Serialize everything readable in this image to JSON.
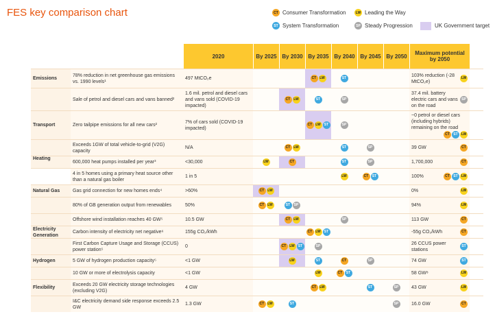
{
  "title": "FES key comparison chart",
  "legend": {
    "ct": "Consumer Transformation",
    "lw": "Leading the Way",
    "st": "System Transformation",
    "sp": "Steady Progression",
    "gov": "UK Government target"
  },
  "badges": {
    "ct": "CT",
    "lw": "LW",
    "st": "ST",
    "sp": "SP"
  },
  "headers": [
    "2020",
    "By 2025",
    "By 2030",
    "By 2035",
    "By 2040",
    "By 2045",
    "By 2050",
    "Maximum potential by 2050"
  ],
  "sections": [
    "Emissions",
    "Transport",
    "Heating",
    "Natural Gas",
    "Electricity Generation",
    "Hydrogen",
    "Flexibility"
  ],
  "rows": [
    {
      "desc": "78% reduction in net greenhouse gas emissions vs. 1990 levels¹",
      "v2020": "497 MtCO₂e",
      "max": "103% reduction (-28 MtCO₂e)"
    },
    {
      "desc": "Sale of petrol and diesel cars and vans banned²",
      "v2020": "1.6 mil. petrol and diesel cars and vans sold (COVID-19 impacted)",
      "max": "37.4 mil. battery electric cars and vans on the road"
    },
    {
      "desc": "Zero tailpipe emissions for all new cars²",
      "v2020": "7% of cars sold (COVID-19 impacted)",
      "max": "~0 petrol or diesel cars (including hybrids) remaining on the road"
    },
    {
      "desc": "Exceeds 1GW of total vehicle-to-grid (V2G) capacity",
      "v2020": "N/A",
      "max": "39 GW"
    },
    {
      "desc": "600,000 heat pumps installed per year³",
      "v2020": "<30,000",
      "max": "1,700,000"
    },
    {
      "desc": "4 in 5 homes using a primary heat source other than a natural gas boiler",
      "v2020": "1 in 5",
      "max": "100%"
    },
    {
      "desc": "Gas grid connection for new homes ends⁴",
      "v2020": ">60%",
      "max": "0%"
    },
    {
      "desc": "80% of GB generation output from renewables",
      "v2020": "50%",
      "max": "94%"
    },
    {
      "desc": "Offshore wind installation reaches 40 GW⁵",
      "v2020": "10.5 GW",
      "max": "113 GW"
    },
    {
      "desc": "Carbon intensity of electricity net negative⁶",
      "v2020": "155g CO₂/kWh",
      "max": "-55g CO₂/kWh"
    },
    {
      "desc": "First Carbon Capture Usage and Storage (CCUS) power station⁵",
      "v2020": "0",
      "max": "26 CCUS power stations"
    },
    {
      "desc": "5 GW of hydrogen production capacity⁵",
      "v2020": "<1 GW",
      "max": "74 GW"
    },
    {
      "desc": "10 GW or more of electrolysis capacity",
      "v2020": "<1 GW",
      "max": "58 GW⁸"
    },
    {
      "desc": "Exceeds 20 GW electricity storage technologies (excluding V2G)",
      "v2020": "4 GW",
      "max": "43 GW"
    },
    {
      "desc": "I&C electricity demand side response exceeds 2.5 GW",
      "v2020": "1.3 GW",
      "max": "16.0 GW"
    }
  ],
  "colors": {
    "ct": "#f5a623",
    "lw": "#f8d21c",
    "st": "#3fa9e0",
    "sp": "#a7a7a7",
    "gov": "#d9cdf0",
    "header": "#fdc82f",
    "title": "#e8540c"
  }
}
